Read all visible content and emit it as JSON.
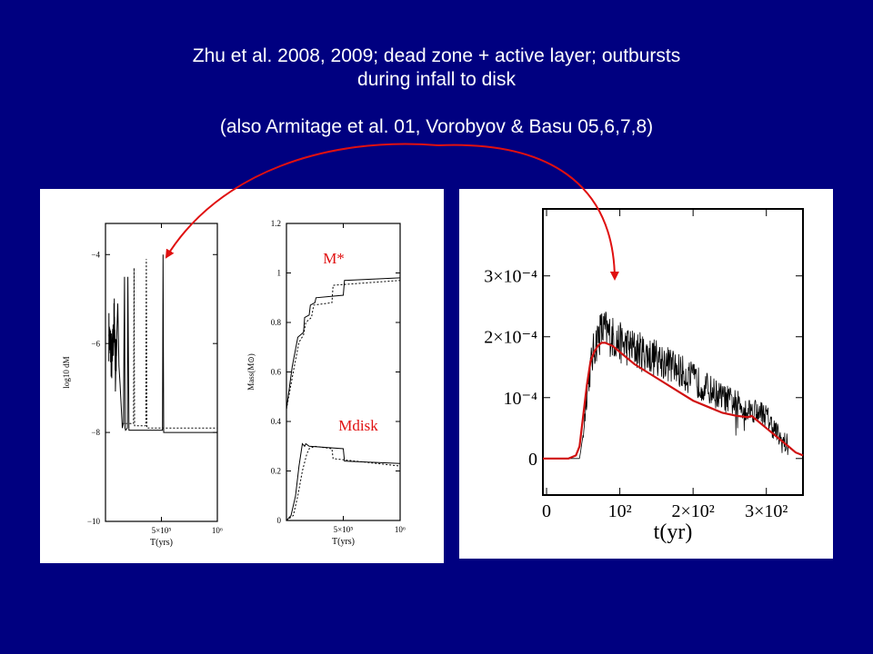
{
  "title": {
    "line1": "Zhu et al. 2008, 2009; dead zone + active layer; outbursts",
    "line2": "during infall to disk",
    "line3": "(also Armitage et al. 01, Vorobyov & Basu 05,6,7,8)"
  },
  "colors": {
    "background": "#000080",
    "arrow": "#e01010",
    "annotation": "#e01010",
    "fit_curve": "#d01010",
    "data": "#000000"
  },
  "chart_data": [
    {
      "type": "line",
      "ylabel": "log10 dM",
      "xlabel": "T(yrs)",
      "xlim": [
        0,
        1000000
      ],
      "ylim": [
        -10,
        -3.3
      ],
      "y_ticks": [
        {
          "value": -4,
          "label": "−4"
        },
        {
          "value": -6,
          "label": "−6"
        },
        {
          "value": -8,
          "label": "−8"
        },
        {
          "value": -10,
          "label": "−10"
        }
      ],
      "x_ticks": [
        {
          "value": 500000,
          "label": "5×10⁵"
        },
        {
          "value": 1000000,
          "label": "10⁶"
        }
      ],
      "series": [
        {
          "style": "solid",
          "x": [
            30000,
            60000,
            80000,
            90000,
            110000,
            120000,
            130000,
            150000,
            160000,
            170000,
            175000,
            180000,
            195000,
            200000,
            210000,
            300000,
            400000,
            510000,
            515000,
            520000,
            700000,
            1000000
          ],
          "y": [
            -5.8,
            -6.4,
            -5.4,
            -6.7,
            -5.1,
            -6.5,
            -6.9,
            -7.9,
            -7.8,
            -4.5,
            -7.9,
            -7.95,
            -7.9,
            -4.5,
            -7.95,
            -7.95,
            -7.95,
            -7.95,
            -4.0,
            -8.0,
            -8.0,
            -8.0
          ]
        },
        {
          "style": "dotted",
          "x": [
            150000,
            250000,
            255000,
            260000,
            360000,
            365000,
            370000,
            1000000
          ],
          "y": [
            -7.8,
            -7.8,
            -4.3,
            -7.85,
            -7.85,
            -4.1,
            -7.9,
            -7.9
          ]
        }
      ]
    },
    {
      "type": "line",
      "ylabel": "Mass(M⊙)",
      "xlabel": "T(yrs)",
      "xlim": [
        0,
        1000000
      ],
      "ylim": [
        0,
        1.2
      ],
      "y_ticks": [
        {
          "value": 0,
          "label": "0"
        },
        {
          "value": 0.2,
          "label": "0.2"
        },
        {
          "value": 0.4,
          "label": "0.4"
        },
        {
          "value": 0.6,
          "label": "0.6"
        },
        {
          "value": 0.8,
          "label": "0.8"
        },
        {
          "value": 1,
          "label": "1"
        },
        {
          "value": 1.2,
          "label": "1.2"
        }
      ],
      "x_ticks": [
        {
          "value": 500000,
          "label": "5×10⁵"
        },
        {
          "value": 1000000,
          "label": "10⁶"
        }
      ],
      "annotations": [
        {
          "text": "M*",
          "color": "#e01010"
        },
        {
          "text": "Mdisk",
          "color": "#e01010"
        }
      ],
      "series": [
        {
          "style": "solid",
          "label": "M*",
          "x": [
            0,
            50000,
            100000,
            150000,
            160000,
            200000,
            210000,
            250000,
            260000,
            500000,
            510000,
            1000000
          ],
          "y": [
            0.45,
            0.62,
            0.74,
            0.76,
            0.82,
            0.83,
            0.87,
            0.88,
            0.9,
            0.91,
            0.97,
            0.98
          ]
        },
        {
          "style": "dotted",
          "label": "M*",
          "x": [
            0,
            60000,
            110000,
            150000,
            170000,
            220000,
            240000,
            400000,
            410000,
            1000000
          ],
          "y": [
            0.45,
            0.6,
            0.72,
            0.75,
            0.8,
            0.82,
            0.87,
            0.88,
            0.95,
            0.97
          ]
        },
        {
          "style": "solid",
          "label": "Mdisk",
          "x": [
            0,
            40000,
            80000,
            110000,
            140000,
            160000,
            170000,
            200000,
            500000,
            510000,
            1000000
          ],
          "y": [
            0.0,
            0.02,
            0.1,
            0.22,
            0.31,
            0.3,
            0.31,
            0.3,
            0.29,
            0.24,
            0.23
          ]
        },
        {
          "style": "dotted",
          "label": "Mdisk",
          "x": [
            0,
            60000,
            100000,
            140000,
            180000,
            200000,
            250000,
            400000,
            410000,
            1000000
          ],
          "y": [
            0.0,
            0.02,
            0.1,
            0.2,
            0.27,
            0.29,
            0.3,
            0.29,
            0.25,
            0.22
          ]
        }
      ]
    },
    {
      "type": "line",
      "xlabel": "t(yr)",
      "ylabel": "",
      "xlim": [
        -5,
        350
      ],
      "ylim": [
        -6e-05,
        0.00041
      ],
      "x_ticks": [
        {
          "value": 0,
          "label": "0"
        },
        {
          "value": 100,
          "label": "10²"
        },
        {
          "value": 200,
          "label": "2×10²"
        },
        {
          "value": 300,
          "label": "3×10²"
        }
      ],
      "y_ticks": [
        {
          "value": 0,
          "label": "0"
        },
        {
          "value": 0.0001,
          "label": "10⁻⁴"
        },
        {
          "value": 0.0002,
          "label": "2×10⁻⁴"
        },
        {
          "value": 0.0003,
          "label": "3×10⁻⁴"
        }
      ],
      "series": [
        {
          "style": "noisy",
          "color": "#000000",
          "x": [
            -5,
            45,
            50,
            55,
            60,
            65,
            70,
            75,
            80,
            90,
            100,
            110,
            120,
            140,
            160,
            180,
            200,
            220,
            240,
            260,
            275,
            280,
            290,
            300,
            305,
            310,
            320,
            330,
            340,
            350
          ],
          "y": [
            0.0,
            0.0,
            4e-05,
            0.00011,
            0.00015,
            0.00018,
            0.0002,
            0.00021,
            0.00021,
            0.0002,
            0.00019,
            0.000185,
            0.00018,
            0.00017,
            0.00016,
            0.000145,
            0.00013,
            0.000115,
            0.0001,
            9e-05,
            8e-05,
            8e-05,
            8e-05,
            7e-05,
            6e-05,
            5e-05,
            3e-05,
            2e-05,
            1e-05,
            5e-06
          ]
        },
        {
          "style": "solid",
          "color": "#d01010",
          "x": [
            -5,
            30,
            40,
            45,
            50,
            55,
            60,
            65,
            70,
            75,
            80,
            90,
            100,
            110,
            120,
            140,
            160,
            180,
            200,
            220,
            240,
            260,
            275,
            280,
            290,
            300,
            310,
            320,
            330,
            340,
            350
          ],
          "y": [
            0.0,
            0.0,
            5e-06,
            2e-05,
            7e-05,
            0.00012,
            0.00016,
            0.000175,
            0.000185,
            0.00019,
            0.00019,
            0.000185,
            0.000175,
            0.000165,
            0.000155,
            0.00014,
            0.000125,
            0.00011,
            9.5e-05,
            8.5e-05,
            7.5e-05,
            7e-05,
            6.8e-05,
            7e-05,
            6e-05,
            5e-05,
            4e-05,
            3e-05,
            2e-05,
            1e-05,
            5e-06
          ]
        }
      ]
    }
  ]
}
